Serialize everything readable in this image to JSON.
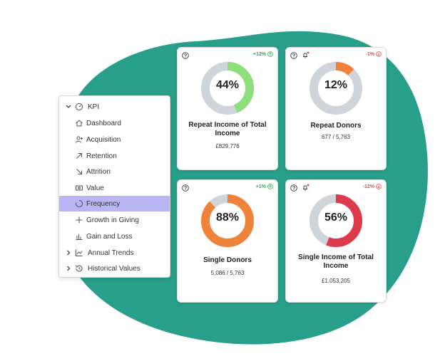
{
  "colors": {
    "blob": "#279f8b",
    "active_row": "#b9b6f3",
    "ring_track": "#cfd3da",
    "ring_green": "#8ddf7b",
    "ring_orange": "#f0833a",
    "ring_red": "#dd3a4b",
    "change_up": "#2fa84f",
    "change_down": "#e04848"
  },
  "menu": {
    "root": {
      "label": "KPI",
      "icon": "gauge-icon"
    },
    "items": [
      {
        "label": "Dashboard",
        "icon": "home-icon"
      },
      {
        "label": "Acquisition",
        "icon": "user-add-icon"
      },
      {
        "label": "Retention",
        "icon": "arrow-up-right-icon"
      },
      {
        "label": "Attrition",
        "icon": "arrow-down-right-icon"
      },
      {
        "label": "Value",
        "icon": "banknote-icon"
      },
      {
        "label": "Frequency",
        "icon": "loading-circle-icon",
        "active": true
      },
      {
        "label": "Growth in Giving",
        "icon": "plus-icon"
      },
      {
        "label": "Gain and Loss",
        "icon": "bar-chart-icon"
      }
    ],
    "groups": [
      {
        "label": "Annual Trends",
        "icon": "line-chart-icon"
      },
      {
        "label": "Historical Values",
        "icon": "history-icon"
      }
    ]
  },
  "cards": [
    {
      "title": "Repeat Income of Total Income",
      "percent": 44,
      "percent_label": "44%",
      "subtitle": "£829,776",
      "change": "+12%",
      "direction": "up",
      "ring_color": "#8ddf7b",
      "bell": false
    },
    {
      "title": "Repeat Donors",
      "percent": 12,
      "percent_label": "12%",
      "subtitle": "677 / 5,763",
      "change": "-1%",
      "direction": "down",
      "ring_color": "#f0833a",
      "bell": true
    },
    {
      "title": "Single Donors",
      "percent": 88,
      "percent_label": "88%",
      "subtitle": "5,086 / 5,763",
      "change": "+1%",
      "direction": "up",
      "ring_color": "#f0833a",
      "bell": false
    },
    {
      "title": "Single Income of Total Income",
      "percent": 56,
      "percent_label": "56%",
      "subtitle": "£1,053,205",
      "change": "-12%",
      "direction": "down",
      "ring_color": "#dd3a4b",
      "bell": true
    }
  ]
}
